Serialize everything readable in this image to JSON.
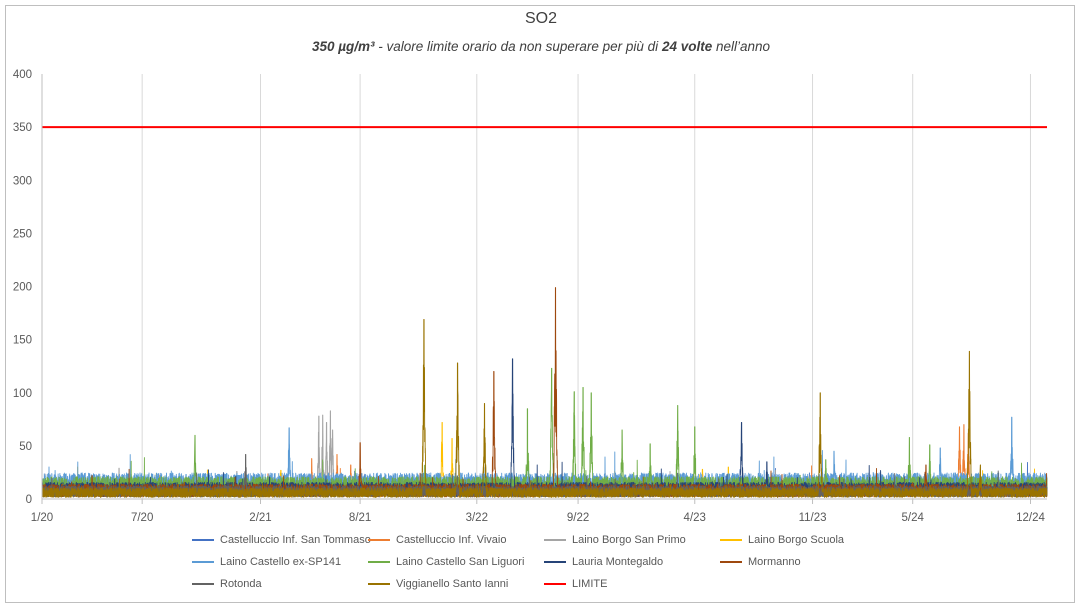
{
  "chart_data": {
    "type": "line",
    "title": "SO2",
    "subtitle": {
      "prefix_bold": "350 µg/m³",
      "middle": " - valore limite orario da non superare per più di ",
      "count_bold": "24 volte",
      "suffix": " nell’anno"
    },
    "x_tick_labels": [
      "1/20",
      "7/20",
      "2/21",
      "8/21",
      "3/22",
      "9/22",
      "4/23",
      "11/23",
      "5/24",
      "12/24"
    ],
    "y_tick_labels": [
      "0",
      "50",
      "100",
      "150",
      "200",
      "250",
      "300",
      "350",
      "400"
    ],
    "ylim": [
      0,
      400
    ],
    "grid": "vertical",
    "legend_position": "bottom",
    "limit_value": 350,
    "series": [
      {
        "name": "Castelluccio Inf. San Tommaso",
        "color": "#4472C4",
        "baseline": 9,
        "peaks": []
      },
      {
        "name": "Castelluccio Inf. Vivaio",
        "color": "#ED7D31",
        "baseline": 8,
        "peaks": [
          [
            "2021-05-05",
            38
          ],
          [
            "2021-06-20",
            42
          ],
          [
            "2021-07-15",
            32
          ],
          [
            "2024-07-25",
            68
          ],
          [
            "2024-08-02",
            70
          ],
          [
            "2024-08-10",
            62
          ]
        ]
      },
      {
        "name": "Laino Borgo San Primo",
        "color": "#A5A5A5",
        "baseline": 8,
        "peaks": [
          [
            "2020-05-20",
            29
          ],
          [
            "2020-12-20",
            26
          ],
          [
            "2021-05-18",
            78
          ],
          [
            "2021-05-25",
            79
          ],
          [
            "2021-06-01",
            72
          ],
          [
            "2021-06-08",
            83
          ],
          [
            "2021-06-12",
            65
          ]
        ]
      },
      {
        "name": "Laino Borgo Scuola",
        "color": "#FFC000",
        "baseline": 8,
        "peaks": [
          [
            "2020-07-27",
            24
          ],
          [
            "2021-03-10",
            27
          ],
          [
            "2021-12-28",
            72
          ],
          [
            "2022-01-15",
            57
          ],
          [
            "2023-04-15",
            28
          ],
          [
            "2023-06-01",
            30
          ]
        ]
      },
      {
        "name": "Laino Castello ex-SP141",
        "color": "#5B9BD5",
        "baseline": 14,
        "peaks": [
          [
            "2021-03-25",
            67
          ],
          [
            "2023-12-10",
            45
          ],
          [
            "2024-06-20",
            48
          ],
          [
            "2024-10-28",
            77
          ]
        ]
      },
      {
        "name": "Laino Castello San Liguori",
        "color": "#70AD47",
        "baseline": 12,
        "peaks": [
          [
            "2020-10-05",
            60
          ],
          [
            "2022-06-01",
            85
          ],
          [
            "2022-07-15",
            123
          ],
          [
            "2022-08-25",
            101
          ],
          [
            "2022-09-10",
            105
          ],
          [
            "2022-09-25",
            100
          ],
          [
            "2022-11-20",
            65
          ],
          [
            "2023-01-10",
            52
          ],
          [
            "2023-03-01",
            88
          ],
          [
            "2023-04-01",
            68
          ],
          [
            "2023-11-25",
            37
          ],
          [
            "2024-04-25",
            58
          ],
          [
            "2024-06-01",
            51
          ]
        ]
      },
      {
        "name": "Lauria Montegaldo",
        "color": "#264478",
        "baseline": 9,
        "peaks": [
          [
            "2022-05-05",
            132
          ],
          [
            "2023-06-25",
            72
          ],
          [
            "2023-08-10",
            35
          ]
        ]
      },
      {
        "name": "Mormanno",
        "color": "#9E480E",
        "baseline": 8,
        "peaks": [
          [
            "2020-04-01",
            22
          ],
          [
            "2021-08-01",
            53
          ],
          [
            "2022-04-01",
            120
          ],
          [
            "2022-07-22",
            199
          ],
          [
            "2024-05-25",
            32
          ]
        ]
      },
      {
        "name": "Rotonda",
        "color": "#636363",
        "baseline": 7,
        "peaks": [
          [
            "2021-01-05",
            42
          ]
        ]
      },
      {
        "name": "Viggianello Santo Ianni",
        "color": "#997300",
        "baseline": 6,
        "peaks": [
          [
            "2021-11-25",
            169
          ],
          [
            "2022-01-25",
            128
          ],
          [
            "2022-03-15",
            90
          ],
          [
            "2023-11-15",
            100
          ],
          [
            "2024-08-12",
            139
          ],
          [
            "2024-09-01",
            32
          ]
        ]
      },
      {
        "name": "LIMITE",
        "color": "#FF0000",
        "constant": 350
      }
    ]
  }
}
